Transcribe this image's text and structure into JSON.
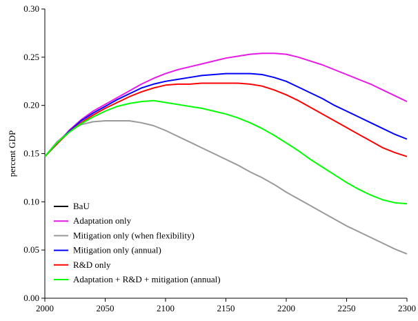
{
  "chart_data": {
    "type": "line",
    "title": "",
    "xlabel": "",
    "ylabel": "percent GDP",
    "xlim": [
      2000,
      2300
    ],
    "ylim": [
      0,
      0.3
    ],
    "xticks": [
      "2000",
      "2050",
      "2100",
      "2150",
      "2200",
      "2250",
      "2300"
    ],
    "yticks": [
      "0.00",
      "0.05",
      "0.10",
      "0.15",
      "0.20",
      "0.25",
      "0.30"
    ],
    "grid": false,
    "legend_position": "bottom-left",
    "series": [
      {
        "name": "BaU",
        "color": "#000000",
        "x": [
          2000,
          2300
        ],
        "y": [
          0.147,
          0.147
        ],
        "hidden_line": true
      },
      {
        "name": "Adaptation only",
        "color": "#e619e6",
        "x": [
          2000,
          2010,
          2020,
          2030,
          2040,
          2050,
          2060,
          2070,
          2080,
          2090,
          2100,
          2110,
          2120,
          2130,
          2140,
          2150,
          2160,
          2170,
          2180,
          2190,
          2200,
          2210,
          2220,
          2230,
          2240,
          2250,
          2260,
          2270,
          2280,
          2290,
          2300
        ],
        "y": [
          0.147,
          0.16,
          0.174,
          0.185,
          0.194,
          0.201,
          0.208,
          0.215,
          0.222,
          0.228,
          0.233,
          0.237,
          0.24,
          0.243,
          0.246,
          0.249,
          0.251,
          0.253,
          0.254,
          0.254,
          0.253,
          0.25,
          0.246,
          0.242,
          0.237,
          0.232,
          0.227,
          0.222,
          0.216,
          0.21,
          0.204
        ]
      },
      {
        "name": "Mitigation only (when flexibility)",
        "color": "#999999",
        "x": [
          2000,
          2010,
          2020,
          2030,
          2040,
          2050,
          2060,
          2070,
          2080,
          2090,
          2100,
          2110,
          2120,
          2130,
          2140,
          2150,
          2160,
          2170,
          2180,
          2190,
          2200,
          2210,
          2220,
          2230,
          2240,
          2250,
          2260,
          2270,
          2280,
          2290,
          2300
        ],
        "y": [
          0.147,
          0.162,
          0.173,
          0.18,
          0.183,
          0.184,
          0.184,
          0.184,
          0.182,
          0.179,
          0.174,
          0.168,
          0.162,
          0.156,
          0.15,
          0.144,
          0.138,
          0.131,
          0.125,
          0.118,
          0.11,
          0.103,
          0.096,
          0.089,
          0.082,
          0.075,
          0.069,
          0.063,
          0.057,
          0.051,
          0.046
        ]
      },
      {
        "name": "Mitigation only (annual)",
        "color": "#0000ff",
        "x": [
          2000,
          2010,
          2020,
          2030,
          2040,
          2050,
          2060,
          2070,
          2080,
          2090,
          2100,
          2110,
          2120,
          2130,
          2140,
          2150,
          2160,
          2170,
          2180,
          2190,
          2200,
          2210,
          2220,
          2230,
          2240,
          2250,
          2260,
          2270,
          2280,
          2290,
          2300
        ],
        "y": [
          0.147,
          0.16,
          0.173,
          0.184,
          0.192,
          0.199,
          0.206,
          0.212,
          0.218,
          0.222,
          0.225,
          0.227,
          0.229,
          0.231,
          0.232,
          0.233,
          0.233,
          0.233,
          0.232,
          0.229,
          0.225,
          0.219,
          0.213,
          0.207,
          0.2,
          0.194,
          0.188,
          0.182,
          0.176,
          0.17,
          0.165
        ]
      },
      {
        "name": "R&D only",
        "color": "#ff0000",
        "x": [
          2000,
          2010,
          2020,
          2030,
          2040,
          2050,
          2060,
          2070,
          2080,
          2090,
          2100,
          2110,
          2120,
          2130,
          2140,
          2150,
          2160,
          2170,
          2180,
          2190,
          2200,
          2210,
          2220,
          2230,
          2240,
          2250,
          2260,
          2270,
          2280,
          2290,
          2300
        ],
        "y": [
          0.147,
          0.16,
          0.172,
          0.182,
          0.19,
          0.197,
          0.203,
          0.209,
          0.214,
          0.218,
          0.221,
          0.222,
          0.222,
          0.223,
          0.223,
          0.223,
          0.223,
          0.222,
          0.22,
          0.216,
          0.211,
          0.205,
          0.198,
          0.191,
          0.184,
          0.177,
          0.17,
          0.163,
          0.156,
          0.151,
          0.147
        ]
      },
      {
        "name": "Adaptation + R&D + mitigation (annual)",
        "color": "#00ff00",
        "x": [
          2000,
          2010,
          2020,
          2030,
          2040,
          2050,
          2060,
          2070,
          2080,
          2090,
          2100,
          2110,
          2120,
          2130,
          2140,
          2150,
          2160,
          2170,
          2180,
          2190,
          2200,
          2210,
          2220,
          2230,
          2240,
          2250,
          2260,
          2270,
          2280,
          2290,
          2300
        ],
        "y": [
          0.147,
          0.161,
          0.172,
          0.181,
          0.188,
          0.194,
          0.199,
          0.202,
          0.204,
          0.205,
          0.203,
          0.201,
          0.199,
          0.197,
          0.194,
          0.191,
          0.187,
          0.182,
          0.176,
          0.169,
          0.161,
          0.153,
          0.144,
          0.136,
          0.128,
          0.12,
          0.113,
          0.107,
          0.102,
          0.099,
          0.098
        ]
      }
    ]
  }
}
